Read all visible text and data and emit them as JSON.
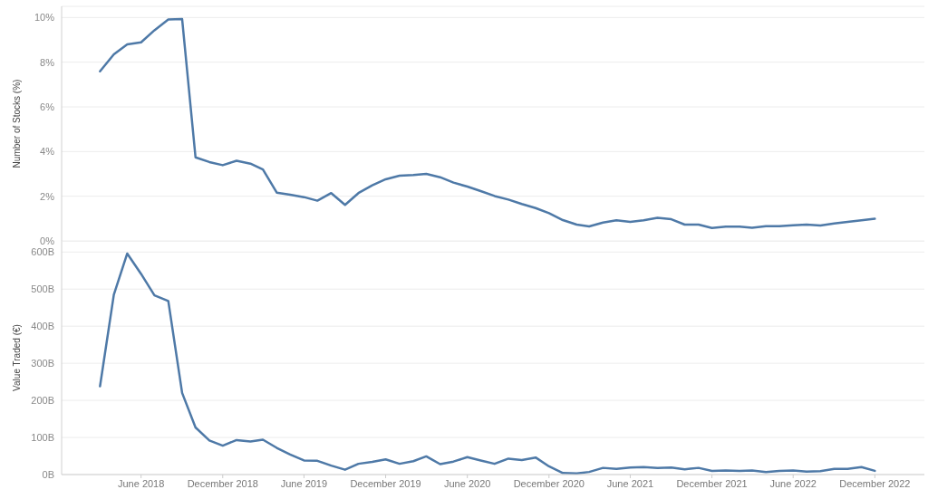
{
  "chart_data": [
    {
      "type": "line",
      "ylabel": "Number of Stocks (%)",
      "color": "#4e79a7",
      "grid": "y",
      "tick_labels": "y",
      "marker": "none",
      "line_style": "solid",
      "x": [
        "2018-03",
        "2018-04",
        "2018-05",
        "2018-06",
        "2018-07",
        "2018-08",
        "2018-09",
        "2018-10",
        "2018-11",
        "2018-12",
        "2019-01",
        "2019-02",
        "2019-03",
        "2019-04",
        "2019-05",
        "2019-06",
        "2019-07",
        "2019-08",
        "2019-09",
        "2019-10",
        "2019-11",
        "2019-12",
        "2020-01",
        "2020-02",
        "2020-03",
        "2020-04",
        "2020-05",
        "2020-06",
        "2020-07",
        "2020-08",
        "2020-09",
        "2020-10",
        "2020-11",
        "2020-12",
        "2021-01",
        "2021-02",
        "2021-03",
        "2021-04",
        "2021-05",
        "2021-06",
        "2021-07",
        "2021-08",
        "2021-09",
        "2021-10",
        "2021-11",
        "2021-12",
        "2022-01",
        "2022-02",
        "2022-03",
        "2022-04",
        "2022-05",
        "2022-06",
        "2022-07",
        "2022-08",
        "2022-09",
        "2022-10",
        "2022-11",
        "2022-12"
      ],
      "values": [
        7.59,
        8.35,
        8.8,
        8.89,
        9.43,
        9.91,
        9.93,
        3.74,
        3.53,
        3.39,
        3.59,
        3.46,
        3.2,
        2.16,
        2.07,
        1.96,
        1.8,
        2.14,
        1.61,
        2.14,
        2.49,
        2.76,
        2.92,
        2.95,
        3.0,
        2.85,
        2.61,
        2.43,
        2.23,
        2.01,
        1.85,
        1.65,
        1.47,
        1.24,
        0.93,
        0.73,
        0.65,
        0.82,
        0.92,
        0.85,
        0.92,
        1.03,
        0.97,
        0.73,
        0.73,
        0.58,
        0.64,
        0.64,
        0.59,
        0.66,
        0.66,
        0.7,
        0.73,
        0.69,
        0.78,
        0.85,
        0.92,
        0.99
      ],
      "xlim": [
        "2017-12-05",
        "2023-03-22"
      ],
      "ylim": [
        0,
        10.5
      ],
      "yticks": [
        {
          "value": 0,
          "label": "0%"
        },
        {
          "value": 2,
          "label": "2%"
        },
        {
          "value": 4,
          "label": "4%"
        },
        {
          "value": 6,
          "label": "6%"
        },
        {
          "value": 8,
          "label": "8%"
        },
        {
          "value": 10,
          "label": "10%"
        }
      ]
    },
    {
      "type": "line",
      "ylabel": "Value Traded (€)",
      "color": "#4e79a7",
      "grid": "y",
      "marker": "none",
      "line_style": "solid",
      "x": [
        "2018-03",
        "2018-04",
        "2018-05",
        "2018-06",
        "2018-07",
        "2018-08",
        "2018-09",
        "2018-10",
        "2018-11",
        "2018-12",
        "2019-01",
        "2019-02",
        "2019-03",
        "2019-04",
        "2019-05",
        "2019-06",
        "2019-07",
        "2019-08",
        "2019-09",
        "2019-10",
        "2019-11",
        "2019-12",
        "2020-01",
        "2020-02",
        "2020-03",
        "2020-04",
        "2020-05",
        "2020-06",
        "2020-07",
        "2020-08",
        "2020-09",
        "2020-10",
        "2020-11",
        "2020-12",
        "2021-01",
        "2021-02",
        "2021-03",
        "2021-04",
        "2021-05",
        "2021-06",
        "2021-07",
        "2021-08",
        "2021-09",
        "2021-10",
        "2021-11",
        "2021-12",
        "2022-01",
        "2022-02",
        "2022-03",
        "2022-04",
        "2022-05",
        "2022-06",
        "2022-07",
        "2022-08",
        "2022-09",
        "2022-10",
        "2022-11",
        "2022-12"
      ],
      "values": [
        238,
        485,
        596,
        541,
        483,
        468,
        220,
        127,
        92,
        78,
        93,
        89,
        94,
        72,
        54,
        38,
        37,
        24,
        13,
        29,
        34,
        41,
        29,
        36,
        49,
        28,
        35,
        47,
        38,
        29,
        43,
        39,
        46,
        22,
        4,
        3,
        7,
        18,
        15,
        19,
        20,
        18,
        19,
        14,
        18,
        10,
        11,
        10,
        11,
        7,
        10,
        11,
        8,
        9,
        15,
        15,
        20,
        10
      ],
      "xlim": [
        "2017-12-05",
        "2023-03-22"
      ],
      "xticks": [
        {
          "value": "2018-06",
          "label": "June 2018"
        },
        {
          "value": "2018-12",
          "label": "December 2018"
        },
        {
          "value": "2019-06",
          "label": "June 2019"
        },
        {
          "value": "2019-12",
          "label": "December 2019"
        },
        {
          "value": "2020-06",
          "label": "June 2020"
        },
        {
          "value": "2020-12",
          "label": "December 2020"
        },
        {
          "value": "2021-06",
          "label": "June 2021"
        },
        {
          "value": "2021-12",
          "label": "December 2021"
        },
        {
          "value": "2022-06",
          "label": "June 2022"
        },
        {
          "value": "2022-12",
          "label": "December 2022"
        }
      ],
      "ylim": [
        0,
        630
      ],
      "yticks": [
        {
          "value": 0,
          "label": "0B"
        },
        {
          "value": 100,
          "label": "100B"
        },
        {
          "value": 200,
          "label": "200B"
        },
        {
          "value": 300,
          "label": "300B"
        },
        {
          "value": 400,
          "label": "400B"
        },
        {
          "value": 500,
          "label": "500B"
        },
        {
          "value": 600,
          "label": "600B"
        }
      ]
    }
  ]
}
